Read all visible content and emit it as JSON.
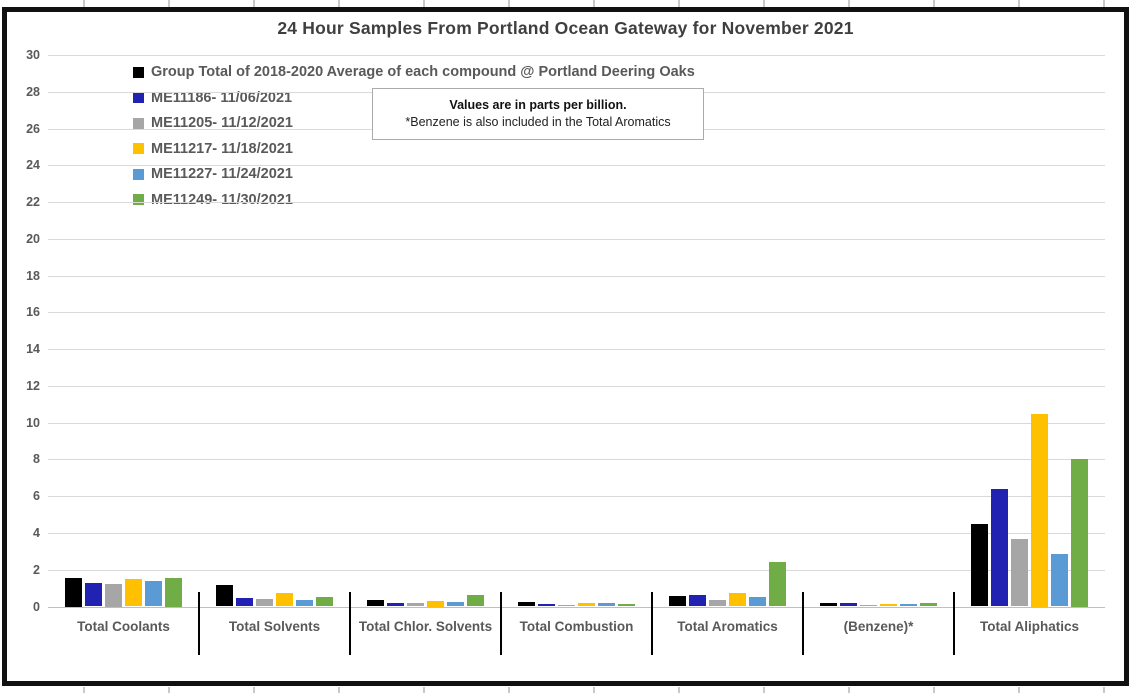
{
  "title": "24 Hour Samples From Portland Ocean Gateway for November 2021",
  "note": {
    "line1": "Values are in parts per billion.",
    "line2": "*Benzene is also included in the Total Aromatics"
  },
  "chart_data": {
    "type": "bar",
    "title": "24 Hour Samples From Portland Ocean Gateway for November 2021",
    "ylabel": "",
    "xlabel": "",
    "ylim": [
      0,
      30
    ],
    "ytick_step": 2,
    "grid": true,
    "legend_position": "top-left",
    "units": "parts per billion",
    "categories": [
      "Total Coolants",
      "Total Solvents",
      "Total Chlor. Solvents",
      "Total Combustion",
      "Total Aromatics",
      "(Benzene)*",
      "Total Aliphatics"
    ],
    "series": [
      {
        "name": "Group Total of 2018-2020 Average of each compound @ Portland Deering Oaks",
        "color": "#000000",
        "values": [
          1.55,
          1.15,
          0.35,
          0.25,
          0.55,
          0.2,
          4.5
        ]
      },
      {
        "name": "ME11186- 11/06/2021",
        "color": "#2222b2",
        "values": [
          1.3,
          0.45,
          0.2,
          0.15,
          0.65,
          0.2,
          6.4
        ]
      },
      {
        "name": "ME11205- 11/12/2021",
        "color": "#a6a6a6",
        "values": [
          1.25,
          0.4,
          0.2,
          0.1,
          0.35,
          0.1,
          3.65
        ]
      },
      {
        "name": "ME11217- 11/18/2021",
        "color": "#ffc000",
        "values": [
          1.5,
          0.75,
          0.3,
          0.2,
          0.75,
          0.15,
          10.5
        ]
      },
      {
        "name": "ME11227- 11/24/2021",
        "color": "#5b9bd5",
        "values": [
          1.4,
          0.35,
          0.25,
          0.2,
          0.5,
          0.15,
          2.85
        ]
      },
      {
        "name": "ME11249- 11/30/2021",
        "color": "#70ad47",
        "values": [
          1.55,
          0.5,
          0.65,
          0.15,
          2.4,
          0.2,
          8.05
        ]
      }
    ]
  },
  "colors": {
    "grid": "#d9d9d9",
    "axis": "#bfbfbf",
    "text": "#595959",
    "title_text": "#3f3f3f",
    "frame_border": "#111111"
  }
}
